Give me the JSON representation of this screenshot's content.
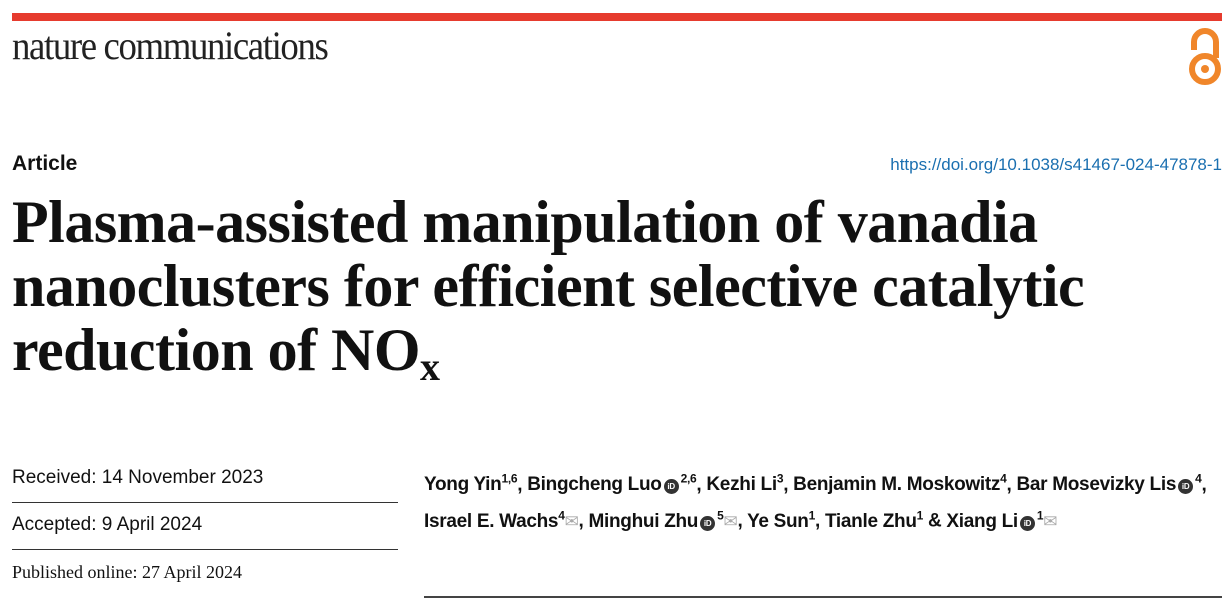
{
  "journal": "nature communications",
  "open_access_icon": "open-access-lock-icon",
  "colors": {
    "top_bar": "#e63b2e",
    "open_access": "#f0862a",
    "doi_link": "#1a6fb0"
  },
  "article_type": "Article",
  "doi": "https://doi.org/10.1038/s41467-024-47878-1",
  "title": {
    "main": "Plasma-assisted manipulation of vanadia nanoclusters for efficient selective catalytic reduction of NO",
    "subscript": "x"
  },
  "dates": {
    "received": "Received: 14 November 2023",
    "accepted": "Accepted: 9 April 2024",
    "published": "Published online: 27 April 2024"
  },
  "authors": [
    {
      "name": "Yong Yin",
      "aff": "1,6",
      "orcid": false,
      "mail": false,
      "sep": ", "
    },
    {
      "name": "Bingcheng Luo",
      "aff": "2,6",
      "orcid": true,
      "mail": false,
      "sep": ", "
    },
    {
      "name": "Kezhi Li",
      "aff": "3",
      "orcid": false,
      "mail": false,
      "sep": ", "
    },
    {
      "name": "Benjamin M. Moskowitz",
      "aff": "4",
      "orcid": false,
      "mail": false,
      "sep": ", "
    },
    {
      "name": "Bar Mosevizky Lis",
      "aff": "4",
      "orcid": true,
      "mail": false,
      "sep": ", "
    },
    {
      "name": "Israel E. Wachs",
      "aff": "4",
      "orcid": false,
      "mail": true,
      "sep": ", "
    },
    {
      "name": "Minghui Zhu",
      "aff": "5",
      "orcid": true,
      "mail": true,
      "sep": ", "
    },
    {
      "name": "Ye Sun",
      "aff": "1",
      "orcid": false,
      "mail": false,
      "sep": ", "
    },
    {
      "name": "Tianle Zhu",
      "aff": "1",
      "orcid": false,
      "mail": false,
      "sep": " & "
    },
    {
      "name": "Xiang Li",
      "aff": "1",
      "orcid": true,
      "mail": true,
      "sep": ""
    }
  ]
}
